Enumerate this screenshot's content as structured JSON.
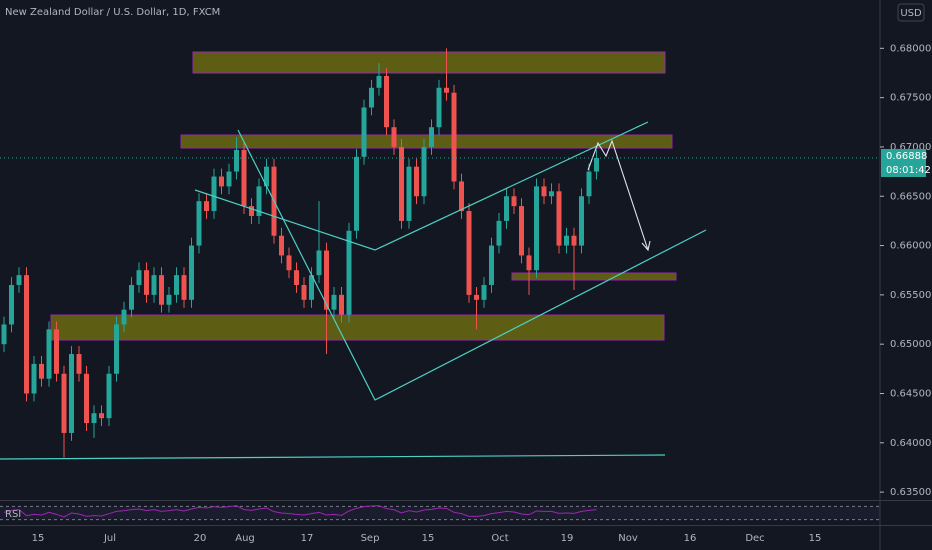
{
  "chart_data": {
    "type": "candlestick",
    "title": "New Zealand Dollar / U.S. Dollar, 1D, FXCM",
    "currency": "USD",
    "up_color": "#26a69a",
    "down_color": "#ef5350",
    "ylim": [
      0.6342,
      0.6849
    ],
    "yticks": [
      {
        "value": 0.635,
        "label": "0.63500"
      },
      {
        "value": 0.64,
        "label": "0.64000"
      },
      {
        "value": 0.645,
        "label": "0.64500"
      },
      {
        "value": 0.65,
        "label": "0.65000"
      },
      {
        "value": 0.655,
        "label": "0.65500"
      },
      {
        "value": 0.66,
        "label": "0.66000"
      },
      {
        "value": 0.665,
        "label": "0.66500"
      },
      {
        "value": 0.67,
        "label": "0.67000"
      },
      {
        "value": 0.675,
        "label": "0.67500"
      },
      {
        "value": 0.68,
        "label": "0.68000"
      }
    ],
    "last_price": 0.66888,
    "countdown": "08:01:42",
    "x_labels": [
      "15",
      "Jul",
      "20",
      "Aug",
      "17",
      "Sep",
      "15",
      "Oct",
      "19",
      "Nov",
      "16",
      "Dec",
      "15"
    ],
    "candles": [
      [
        0.65,
        0.6528,
        0.6492,
        0.652
      ],
      [
        0.652,
        0.6568,
        0.6512,
        0.656
      ],
      [
        0.656,
        0.6578,
        0.6552,
        0.657
      ],
      [
        0.657,
        0.6578,
        0.6442,
        0.645
      ],
      [
        0.645,
        0.6488,
        0.6442,
        0.648
      ],
      [
        0.648,
        0.6488,
        0.6457,
        0.6465
      ],
      [
        0.6465,
        0.6523,
        0.6457,
        0.6515
      ],
      [
        0.6515,
        0.6523,
        0.6462,
        0.647
      ],
      [
        0.647,
        0.6478,
        0.6385,
        0.641
      ],
      [
        0.641,
        0.6498,
        0.6402,
        0.649
      ],
      [
        0.649,
        0.6498,
        0.6462,
        0.647
      ],
      [
        0.647,
        0.6478,
        0.6412,
        0.642
      ],
      [
        0.642,
        0.6438,
        0.6405,
        0.643
      ],
      [
        0.643,
        0.6438,
        0.6417,
        0.6425
      ],
      [
        0.6425,
        0.6478,
        0.6417,
        0.647
      ],
      [
        0.647,
        0.6528,
        0.6462,
        0.652
      ],
      [
        0.652,
        0.6543,
        0.6512,
        0.6535
      ],
      [
        0.6535,
        0.6568,
        0.6527,
        0.656
      ],
      [
        0.656,
        0.6583,
        0.6552,
        0.6575
      ],
      [
        0.6575,
        0.6583,
        0.6542,
        0.655
      ],
      [
        0.655,
        0.6578,
        0.6542,
        0.657
      ],
      [
        0.657,
        0.6578,
        0.6532,
        0.654
      ],
      [
        0.654,
        0.6558,
        0.6532,
        0.655
      ],
      [
        0.655,
        0.6578,
        0.6542,
        0.657
      ],
      [
        0.657,
        0.6578,
        0.6537,
        0.6545
      ],
      [
        0.6545,
        0.6608,
        0.6537,
        0.66
      ],
      [
        0.66,
        0.6653,
        0.6592,
        0.6645
      ],
      [
        0.6645,
        0.6653,
        0.6627,
        0.6635
      ],
      [
        0.6635,
        0.6678,
        0.6627,
        0.667
      ],
      [
        0.667,
        0.6678,
        0.6652,
        0.666
      ],
      [
        0.666,
        0.6683,
        0.6652,
        0.6675
      ],
      [
        0.6675,
        0.671,
        0.6667,
        0.6697
      ],
      [
        0.6697,
        0.6705,
        0.6632,
        0.664
      ],
      [
        0.664,
        0.6648,
        0.6622,
        0.663
      ],
      [
        0.663,
        0.6668,
        0.6622,
        0.666
      ],
      [
        0.666,
        0.6688,
        0.6652,
        0.668
      ],
      [
        0.668,
        0.6688,
        0.6602,
        0.661
      ],
      [
        0.661,
        0.6618,
        0.6582,
        0.659
      ],
      [
        0.659,
        0.6598,
        0.6567,
        0.6575
      ],
      [
        0.6575,
        0.6583,
        0.6552,
        0.656
      ],
      [
        0.656,
        0.6568,
        0.6537,
        0.6545
      ],
      [
        0.6545,
        0.6578,
        0.6537,
        0.657
      ],
      [
        0.657,
        0.6645,
        0.6562,
        0.6595
      ],
      [
        0.6595,
        0.6603,
        0.649,
        0.6535
      ],
      [
        0.6535,
        0.6558,
        0.6527,
        0.655
      ],
      [
        0.655,
        0.6558,
        0.6522,
        0.653
      ],
      [
        0.653,
        0.6623,
        0.6522,
        0.6615
      ],
      [
        0.6615,
        0.6698,
        0.6607,
        0.669
      ],
      [
        0.669,
        0.6748,
        0.6682,
        0.674
      ],
      [
        0.674,
        0.6768,
        0.6732,
        0.676
      ],
      [
        0.676,
        0.6785,
        0.6752,
        0.6772
      ],
      [
        0.6772,
        0.678,
        0.6712,
        0.672
      ],
      [
        0.672,
        0.6728,
        0.6692,
        0.67
      ],
      [
        0.67,
        0.6708,
        0.6617,
        0.6625
      ],
      [
        0.6625,
        0.6688,
        0.6617,
        0.668
      ],
      [
        0.668,
        0.6688,
        0.6642,
        0.665
      ],
      [
        0.665,
        0.6708,
        0.6642,
        0.67
      ],
      [
        0.67,
        0.6728,
        0.6692,
        0.672
      ],
      [
        0.672,
        0.6768,
        0.6712,
        0.676
      ],
      [
        0.676,
        0.68,
        0.6747,
        0.6755
      ],
      [
        0.6755,
        0.6763,
        0.6657,
        0.6665
      ],
      [
        0.6665,
        0.6673,
        0.6627,
        0.6635
      ],
      [
        0.6635,
        0.6643,
        0.6542,
        0.655
      ],
      [
        0.655,
        0.6558,
        0.6515,
        0.6545
      ],
      [
        0.6545,
        0.6568,
        0.6537,
        0.656
      ],
      [
        0.656,
        0.6608,
        0.6552,
        0.66
      ],
      [
        0.66,
        0.6633,
        0.6592,
        0.6625
      ],
      [
        0.6625,
        0.6658,
        0.6617,
        0.665
      ],
      [
        0.665,
        0.6658,
        0.6632,
        0.664
      ],
      [
        0.664,
        0.6648,
        0.6582,
        0.659
      ],
      [
        0.659,
        0.6598,
        0.655,
        0.6575
      ],
      [
        0.6575,
        0.6668,
        0.6567,
        0.666
      ],
      [
        0.666,
        0.6668,
        0.6642,
        0.665
      ],
      [
        0.665,
        0.6663,
        0.6642,
        0.6655
      ],
      [
        0.6655,
        0.6663,
        0.6592,
        0.66
      ],
      [
        0.66,
        0.6618,
        0.6592,
        0.661
      ],
      [
        0.661,
        0.6618,
        0.6555,
        0.66
      ],
      [
        0.66,
        0.6658,
        0.6592,
        0.665
      ],
      [
        0.665,
        0.6683,
        0.6642,
        0.6675
      ],
      [
        0.6675,
        0.6697,
        0.6667,
        0.66888
      ]
    ],
    "rsi": {
      "name": "RSI",
      "color": "#9c27b0",
      "ylim": [
        20,
        80
      ],
      "bands": [
        30,
        70
      ],
      "values": [
        52,
        58,
        60,
        42,
        46,
        44,
        52,
        46,
        38,
        50,
        47,
        40,
        42,
        41,
        48,
        55,
        57,
        60,
        62,
        57,
        60,
        55,
        57,
        60,
        56,
        62,
        67,
        65,
        69,
        67,
        69,
        72,
        60,
        58,
        62,
        65,
        54,
        50,
        48,
        46,
        44,
        48,
        52,
        44,
        46,
        43,
        56,
        64,
        69,
        71,
        72,
        63,
        60,
        50,
        57,
        53,
        59,
        61,
        65,
        64,
        52,
        48,
        40,
        40,
        42,
        48,
        51,
        55,
        53,
        47,
        45,
        56,
        55,
        55,
        49,
        50,
        49,
        55,
        58,
        60
      ]
    }
  }
}
